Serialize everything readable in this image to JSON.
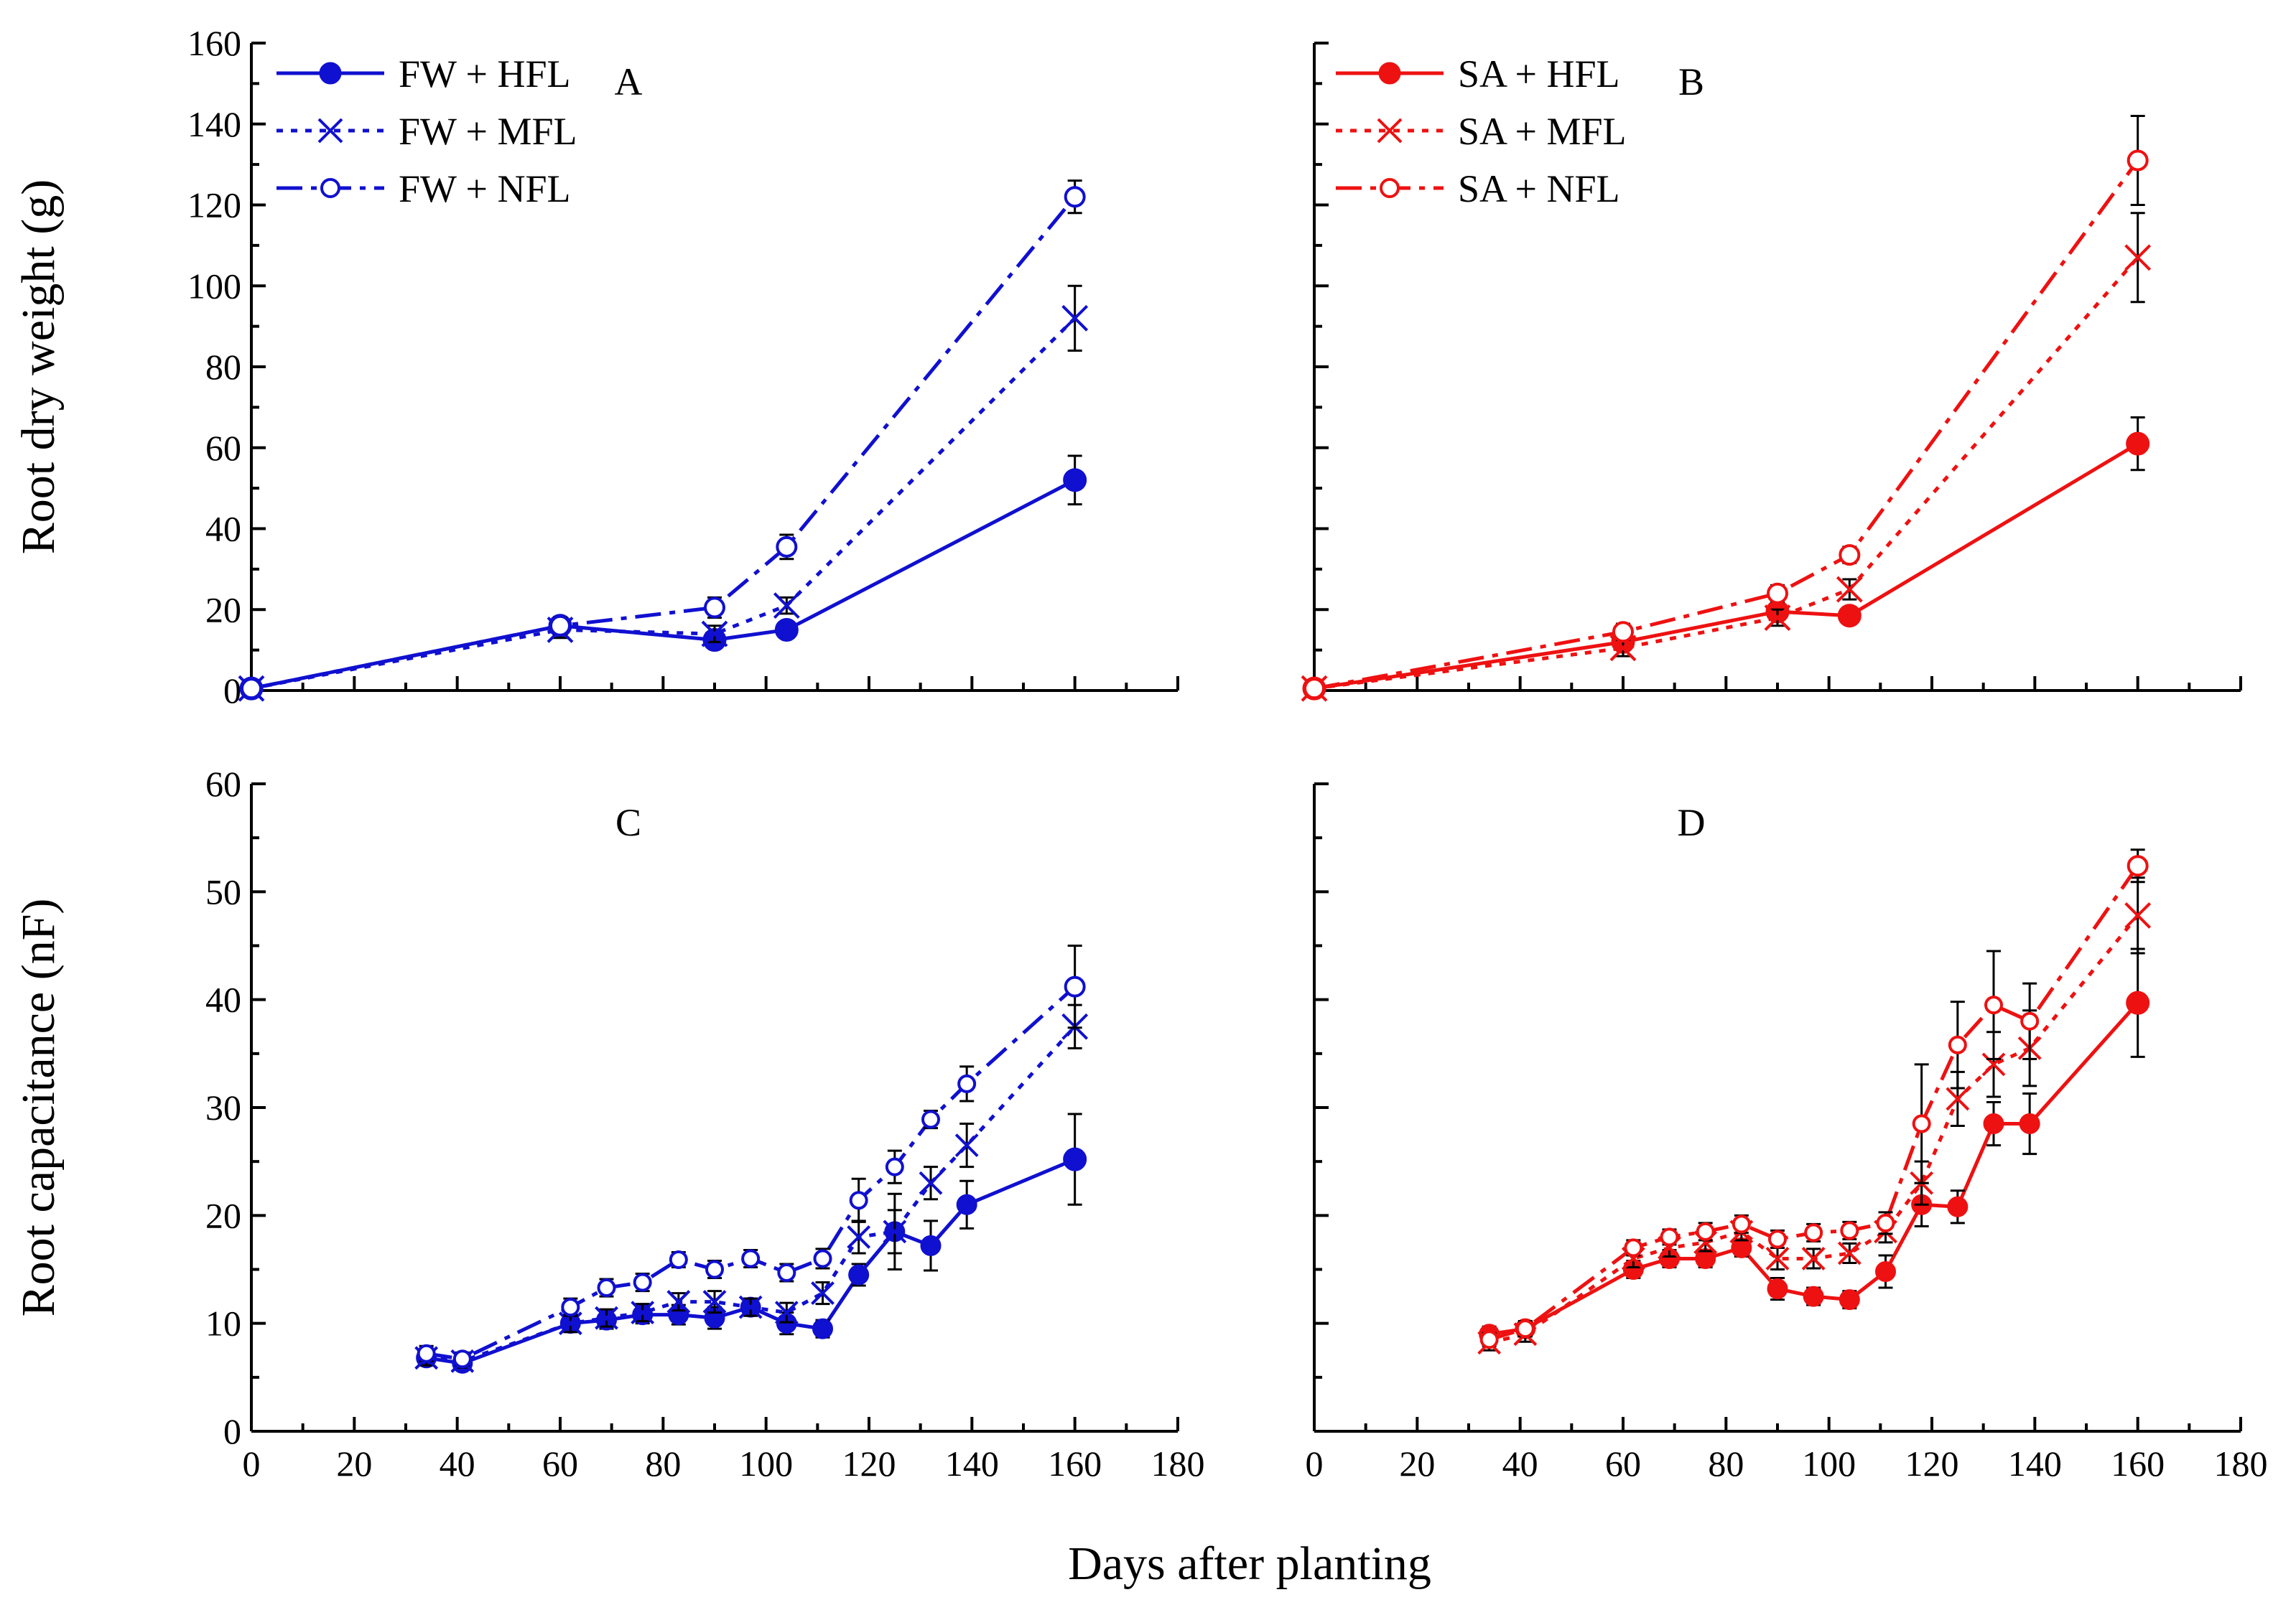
{
  "figure": {
    "shared_xlabel": "Days after planting"
  },
  "colors": {
    "FW": "#1010d0",
    "SA": "#ee1111",
    "errorbar": "#000000"
  },
  "chart_data": [
    {
      "panel": "A",
      "type": "line",
      "title": "A",
      "ylabel": "Root dry weight (g)",
      "xlabel": "",
      "xlim": [
        0,
        180
      ],
      "ylim": [
        0,
        160
      ],
      "xticks": [
        0,
        20,
        40,
        60,
        80,
        100,
        120,
        140,
        160,
        180
      ],
      "yticks": [
        0,
        20,
        40,
        60,
        80,
        100,
        120,
        140,
        160
      ],
      "show_x_tick_labels": false,
      "show_y_tick_labels": true,
      "legend": "top-left",
      "series": [
        {
          "name": "FW + HFL",
          "color": "#1010d0",
          "dash": "solid",
          "marker": "filled-circle",
          "x": [
            0,
            60,
            90,
            104,
            160
          ],
          "values": [
            0.5,
            16,
            12.5,
            15,
            52
          ],
          "err": [
            0.5,
            2,
            2,
            2,
            6
          ]
        },
        {
          "name": "FW + MFL",
          "color": "#1010d0",
          "dash": "dot",
          "marker": "x",
          "x": [
            0,
            60,
            90,
            104,
            160
          ],
          "values": [
            0.5,
            15,
            14,
            21,
            92
          ],
          "err": [
            0.5,
            2,
            2,
            2,
            8
          ]
        },
        {
          "name": "FW + NFL",
          "color": "#1010d0",
          "dash": "dashdot",
          "marker": "open-circle",
          "x": [
            0,
            60,
            90,
            104,
            160
          ],
          "values": [
            0.5,
            16,
            20.5,
            35.5,
            122
          ],
          "err": [
            0.5,
            2,
            2.5,
            3,
            4
          ]
        }
      ]
    },
    {
      "panel": "B",
      "type": "line",
      "title": "B",
      "ylabel": "",
      "xlabel": "",
      "xlim": [
        0,
        180
      ],
      "ylim": [
        0,
        160
      ],
      "xticks": [
        0,
        20,
        40,
        60,
        80,
        100,
        120,
        140,
        160,
        180
      ],
      "yticks": [
        0,
        20,
        40,
        60,
        80,
        100,
        120,
        140,
        160
      ],
      "show_x_tick_labels": false,
      "show_y_tick_labels": false,
      "legend": "top-left",
      "series": [
        {
          "name": "SA + HFL",
          "color": "#ee1111",
          "dash": "solid",
          "marker": "filled-circle",
          "x": [
            0,
            60,
            90,
            104,
            160
          ],
          "values": [
            0.5,
            12,
            19.5,
            18.5,
            61
          ],
          "err": [
            0.5,
            2,
            2,
            2,
            6.5
          ]
        },
        {
          "name": "SA + MFL",
          "color": "#ee1111",
          "dash": "dot",
          "marker": "x",
          "x": [
            0,
            60,
            90,
            104,
            160
          ],
          "values": [
            0.5,
            10.5,
            18,
            25,
            107
          ],
          "err": [
            0.5,
            2,
            2,
            2.5,
            11
          ]
        },
        {
          "name": "SA + NFL",
          "color": "#ee1111",
          "dash": "dashdot",
          "marker": "open-circle",
          "x": [
            0,
            60,
            90,
            104,
            160
          ],
          "values": [
            0.5,
            14.5,
            24,
            33.5,
            131
          ],
          "err": [
            0.5,
            2,
            2,
            2,
            11
          ]
        }
      ]
    },
    {
      "panel": "C",
      "type": "line",
      "title": "C",
      "ylabel": "Root capacitance (nF)",
      "xlabel": "",
      "xlim": [
        0,
        180
      ],
      "ylim": [
        0,
        60
      ],
      "xticks": [
        0,
        20,
        40,
        60,
        80,
        100,
        120,
        140,
        160,
        180
      ],
      "yticks": [
        0,
        10,
        20,
        30,
        40,
        50,
        60
      ],
      "show_x_tick_labels": true,
      "show_y_tick_labels": true,
      "legend": "none",
      "series": [
        {
          "name": "FW + HFL",
          "color": "#1010d0",
          "dash": "solid",
          "marker": "filled-circle",
          "x": [
            34,
            41,
            62,
            69,
            76,
            83,
            90,
            97,
            104,
            111,
            118,
            125,
            132,
            139,
            160
          ],
          "values": [
            6.8,
            6.3,
            10,
            10.3,
            10.8,
            10.8,
            10.5,
            11.5,
            10,
            9.5,
            14.5,
            18.5,
            17.2,
            21,
            25.2
          ],
          "err": [
            0.7,
            0.6,
            0.8,
            0.8,
            0.8,
            0.9,
            1,
            0.8,
            1,
            0.8,
            1,
            3.5,
            2.3,
            2.2,
            4.2
          ]
        },
        {
          "name": "FW + MFL",
          "color": "#1010d0",
          "dash": "dot",
          "marker": "x",
          "x": [
            34,
            41,
            62,
            69,
            76,
            83,
            90,
            97,
            104,
            111,
            118,
            125,
            132,
            139,
            160
          ],
          "values": [
            6.8,
            6.5,
            10,
            10.5,
            11,
            12,
            12,
            11.5,
            11,
            12.8,
            18,
            18.5,
            23,
            26.5,
            37.5
          ],
          "err": [
            0.7,
            0.6,
            0.8,
            0.8,
            0.8,
            0.8,
            1,
            0.8,
            0.9,
            1,
            1.5,
            2,
            1.5,
            2,
            2
          ]
        },
        {
          "name": "FW + NFL",
          "color": "#1010d0",
          "dash": "dashdot",
          "marker": "open-circle",
          "x": [
            34,
            41,
            62,
            69,
            76,
            83,
            90,
            97,
            104,
            111,
            118,
            125,
            132,
            139,
            160
          ],
          "values": [
            7.2,
            6.7,
            11.5,
            13.3,
            13.8,
            15.9,
            15,
            16,
            14.7,
            16,
            21.4,
            24.5,
            28.9,
            32.2,
            41.2
          ],
          "err": [
            0.7,
            0.6,
            0.8,
            0.8,
            0.8,
            0.7,
            0.8,
            0.8,
            0.8,
            0.9,
            2,
            1.5,
            0.8,
            1.6,
            3.8
          ]
        }
      ]
    },
    {
      "panel": "D",
      "type": "line",
      "title": "D",
      "ylabel": "",
      "xlabel": "",
      "xlim": [
        0,
        180
      ],
      "ylim": [
        0,
        60
      ],
      "xticks": [
        0,
        20,
        40,
        60,
        80,
        100,
        120,
        140,
        160,
        180
      ],
      "yticks": [
        0,
        10,
        20,
        30,
        40,
        50,
        60
      ],
      "show_x_tick_labels": true,
      "show_y_tick_labels": false,
      "legend": "none",
      "series": [
        {
          "name": "SA + HFL",
          "color": "#ee1111",
          "dash": "solid",
          "marker": "filled-circle",
          "x": [
            34,
            41,
            62,
            69,
            76,
            83,
            90,
            97,
            104,
            111,
            118,
            125,
            132,
            139,
            160
          ],
          "values": [
            9,
            9.5,
            15,
            16,
            16,
            17,
            13.2,
            12.5,
            12.2,
            14.8,
            21,
            20.8,
            28.5,
            28.5,
            39.7
          ],
          "err": [
            0.7,
            0.7,
            0.8,
            0.8,
            0.8,
            0.8,
            1,
            0.8,
            0.8,
            1.5,
            2,
            1.5,
            2,
            2.8,
            5
          ]
        },
        {
          "name": "SA + MFL",
          "color": "#ee1111",
          "dash": "dot",
          "marker": "x",
          "x": [
            34,
            41,
            62,
            69,
            76,
            83,
            90,
            97,
            104,
            111,
            118,
            125,
            132,
            139,
            160
          ],
          "values": [
            8.2,
            9,
            16,
            17,
            17.5,
            18.5,
            16,
            16,
            16.5,
            18.5,
            23,
            30.8,
            34,
            35.5,
            47.8
          ],
          "err": [
            0.7,
            0.7,
            0.8,
            0.8,
            0.8,
            0.8,
            1,
            0.9,
            0.9,
            1,
            2,
            2.5,
            3,
            3.5,
            3.5
          ]
        },
        {
          "name": "SA + NFL",
          "color": "#ee1111",
          "dash": "dashdot",
          "marker": "open-circle",
          "x": [
            34,
            41,
            62,
            69,
            76,
            83,
            90,
            97,
            104,
            111,
            118,
            125,
            132,
            139,
            160
          ],
          "values": [
            8.5,
            9.5,
            17,
            18,
            18.5,
            19.2,
            17.8,
            18.4,
            18.6,
            19.3,
            28.5,
            35.8,
            39.5,
            38,
            52.4
          ],
          "err": [
            0.6,
            0.7,
            0.7,
            0.7,
            0.8,
            0.8,
            0.8,
            0.8,
            0.8,
            1,
            5.5,
            4,
            5,
            3.5,
            1.5
          ]
        }
      ]
    }
  ]
}
